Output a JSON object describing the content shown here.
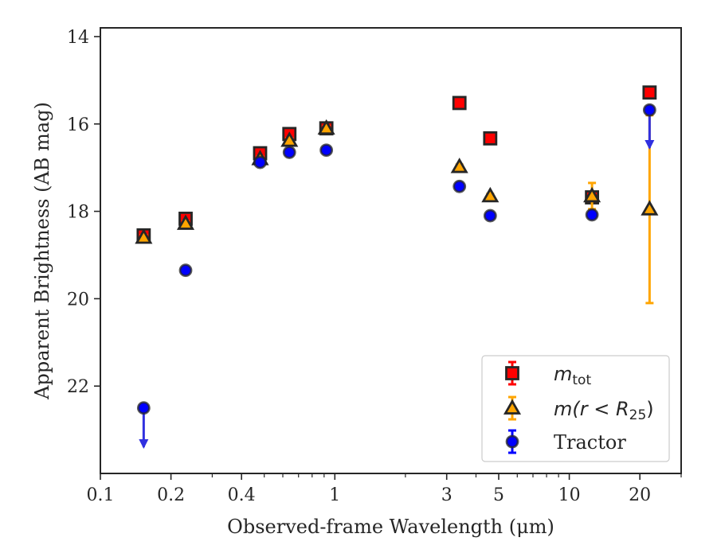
{
  "chart_data": {
    "type": "scatter",
    "title": "",
    "xlabel": "Observed-frame Wavelength (μm)",
    "ylabel": "Apparent Brightness (AB mag)",
    "x_scale": "log",
    "xlim": [
      0.1,
      30
    ],
    "ylim": [
      24.0,
      13.8
    ],
    "y_inverted": true,
    "grid": false,
    "legend_position": "lower-right",
    "x_ticks": [
      {
        "value": 0.1,
        "label": "0.1"
      },
      {
        "value": 0.2,
        "label": "0.2"
      },
      {
        "value": 0.4,
        "label": "0.4"
      },
      {
        "value": 1,
        "label": "1"
      },
      {
        "value": 3,
        "label": "3"
      },
      {
        "value": 5,
        "label": "5"
      },
      {
        "value": 10,
        "label": "10"
      },
      {
        "value": 20,
        "label": "20"
      }
    ],
    "x_minor_ticks": [
      0.3,
      0.5,
      0.6,
      0.7,
      0.8,
      0.9,
      2,
      4,
      6,
      7,
      8,
      9,
      30
    ],
    "y_ticks": [
      {
        "value": 14,
        "label": "14"
      },
      {
        "value": 16,
        "label": "16"
      },
      {
        "value": 18,
        "label": "18"
      },
      {
        "value": 20,
        "label": "20"
      },
      {
        "value": 22,
        "label": "22"
      }
    ],
    "series": [
      {
        "name_main": "m",
        "name_sub": "tot",
        "marker": "square",
        "color": "#ff0000",
        "edge_color": "#262626",
        "err_color": "#ff0000",
        "points": [
          {
            "x": 0.153,
            "y": 18.55,
            "err": 0.05
          },
          {
            "x": 0.231,
            "y": 18.17,
            "err": 0.05
          },
          {
            "x": 0.48,
            "y": 16.67,
            "err": 0.05
          },
          {
            "x": 0.64,
            "y": 16.23,
            "err": 0.05
          },
          {
            "x": 0.92,
            "y": 16.1,
            "err": 0.05
          },
          {
            "x": 3.4,
            "y": 15.52,
            "err": 0.05
          },
          {
            "x": 4.6,
            "y": 16.33,
            "err": 0.05
          },
          {
            "x": 12.5,
            "y": 17.68,
            "err": 0.05
          },
          {
            "x": 22.0,
            "y": 15.28,
            "err": 0.05
          }
        ]
      },
      {
        "name_main": "m(r < R",
        "name_sub": "25",
        "name_tail": ")",
        "marker": "triangle",
        "color": "#ffa500",
        "edge_color": "#262626",
        "err_color": "#ffa500",
        "points": [
          {
            "x": 0.153,
            "y": 18.6,
            "err": 0.05
          },
          {
            "x": 0.231,
            "y": 18.28,
            "err": 0.05
          },
          {
            "x": 0.48,
            "y": 16.8,
            "err": 0.05
          },
          {
            "x": 0.64,
            "y": 16.38,
            "err": 0.05
          },
          {
            "x": 0.92,
            "y": 16.1,
            "err": 0.05
          },
          {
            "x": 3.4,
            "y": 16.98,
            "err": 0.05
          },
          {
            "x": 4.6,
            "y": 17.65,
            "err": 0.05
          },
          {
            "x": 12.5,
            "y": 17.65,
            "err": 0.3
          },
          {
            "x": 22.0,
            "y": 17.95,
            "err": 2.15
          }
        ]
      },
      {
        "name": "Tractor",
        "marker": "circle",
        "color": "#0000ff",
        "edge_color": "#262626",
        "err_color": "#0000ff",
        "points": [
          {
            "x": 0.153,
            "y": 22.5,
            "upper_limit": true,
            "limit_to": 23.4
          },
          {
            "x": 0.231,
            "y": 19.35,
            "err": 0.05
          },
          {
            "x": 0.48,
            "y": 16.88,
            "err": 0.05
          },
          {
            "x": 0.64,
            "y": 16.65,
            "err": 0.05
          },
          {
            "x": 0.92,
            "y": 16.6,
            "err": 0.05
          },
          {
            "x": 3.4,
            "y": 17.43,
            "err": 0.05
          },
          {
            "x": 4.6,
            "y": 18.1,
            "err": 0.05
          },
          {
            "x": 12.5,
            "y": 18.08,
            "err": 0.05
          },
          {
            "x": 22.0,
            "y": 15.68,
            "upper_limit": true,
            "limit_to": 16.55
          }
        ]
      }
    ]
  }
}
